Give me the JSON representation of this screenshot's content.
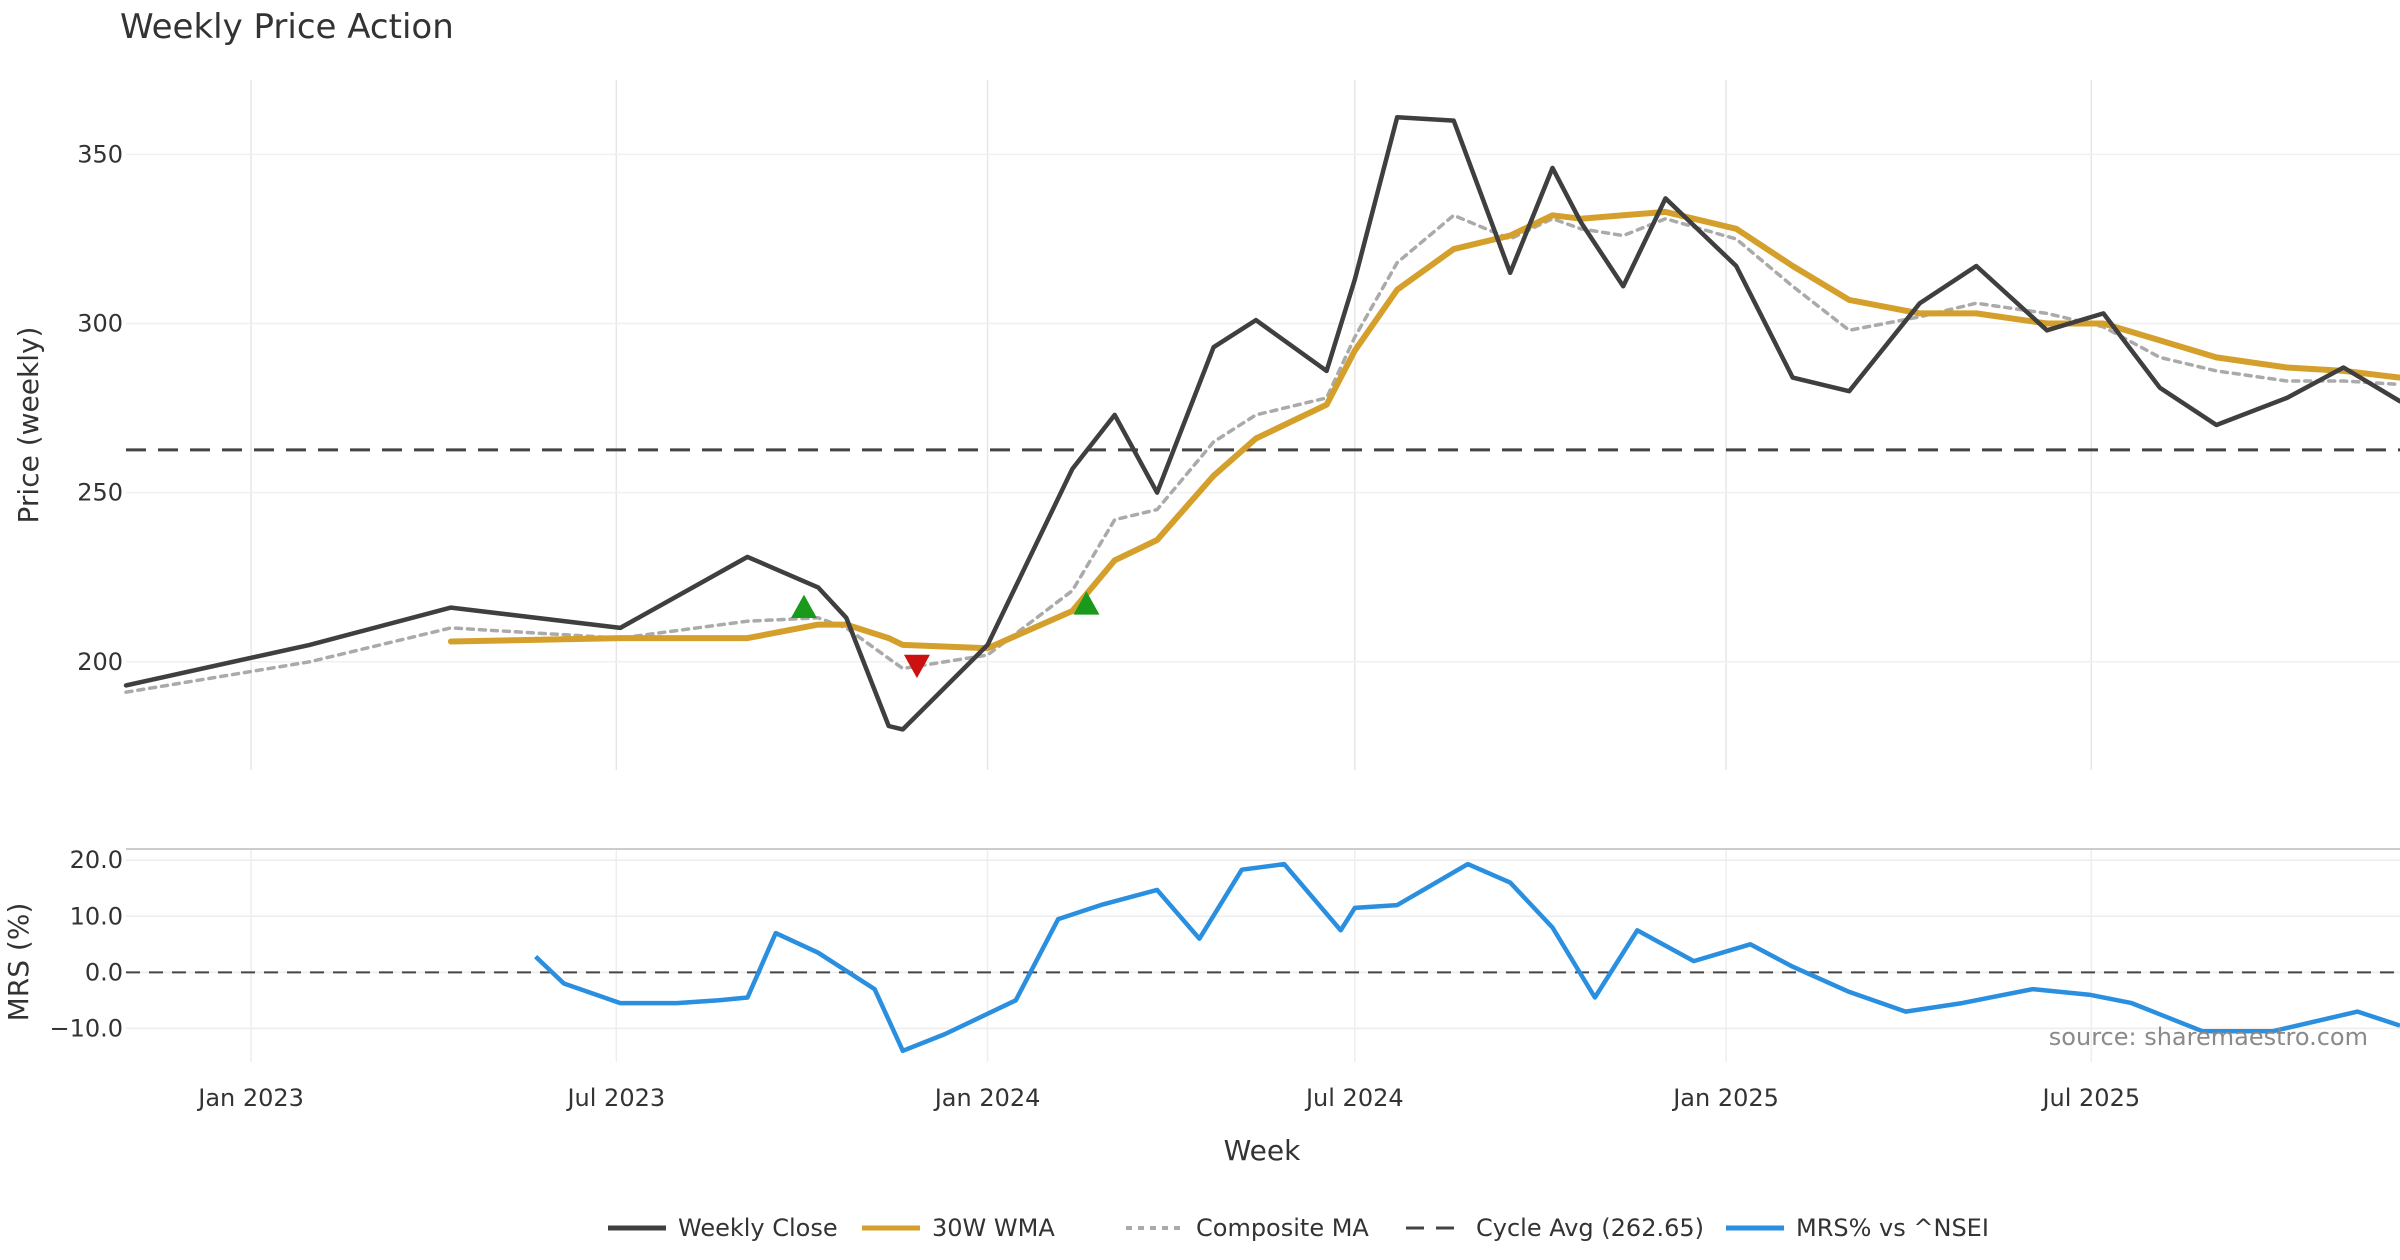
{
  "chart_data": [
    {
      "type": "line",
      "title": "Weekly Price Action",
      "xlabel": "",
      "ylabel": "Price (weekly)",
      "ylim": [
        168,
        372
      ],
      "xlim": [
        "2022-10-31",
        "2025-12-01"
      ],
      "grid": true,
      "x_tick_labels": [
        "Jan 2023",
        "Jul 2023",
        "Jan 2024",
        "Jul 2024",
        "Jan 2025",
        "Jul 2025"
      ],
      "x_ticks": [
        "2023-01-01",
        "2023-07-01",
        "2024-01-01",
        "2024-07-01",
        "2025-01-01",
        "2025-07-01"
      ],
      "y_ticks": [
        200,
        250,
        300,
        350
      ],
      "x": [
        "2022-10-31",
        "2023-01-30",
        "2023-04-10",
        "2023-07-03",
        "2023-09-04",
        "2023-10-09",
        "2023-10-23",
        "2023-11-13",
        "2023-11-20",
        "2024-01-01",
        "2024-02-12",
        "2024-03-04",
        "2024-03-25",
        "2024-04-22",
        "2024-05-13",
        "2024-06-17",
        "2024-07-01",
        "2024-07-22",
        "2024-08-19",
        "2024-09-16",
        "2024-10-07",
        "2024-10-21",
        "2024-11-11",
        "2024-12-02",
        "2025-01-06",
        "2025-02-03",
        "2025-03-03",
        "2025-04-07",
        "2025-05-05",
        "2025-06-09",
        "2025-07-07",
        "2025-08-04",
        "2025-09-01",
        "2025-10-06",
        "2025-11-03",
        "2025-12-01"
      ],
      "series": [
        {
          "name": "Weekly Close",
          "color": "#3f3f3f",
          "values": [
            193,
            205,
            216,
            210,
            231,
            222,
            213,
            181,
            180,
            205,
            257,
            273,
            250,
            293,
            301,
            286,
            313,
            361,
            360,
            315,
            346,
            330,
            311,
            337,
            317,
            284,
            280,
            306,
            317,
            298,
            303,
            281,
            270,
            278,
            287,
            277
          ]
        },
        {
          "name": "30W WMA",
          "color": "#d4a02b",
          "values": [
            null,
            null,
            206,
            207,
            207,
            211,
            211,
            207,
            205,
            204,
            215,
            230,
            236,
            255,
            266,
            276,
            292,
            310,
            322,
            326,
            332,
            331,
            332,
            333,
            328,
            317,
            307,
            303,
            303,
            300,
            300,
            295,
            290,
            287,
            286,
            284
          ]
        },
        {
          "name": "Composite MA",
          "color": "#aaaaaa",
          "values": [
            191,
            200,
            210,
            207,
            212,
            213,
            210,
            201,
            198,
            202,
            221,
            242,
            245,
            265,
            273,
            278,
            296,
            318,
            332,
            325,
            331,
            328,
            326,
            331,
            325,
            311,
            298,
            302,
            306,
            303,
            299,
            290,
            286,
            283,
            283,
            282
          ]
        }
      ],
      "reference_lines": [
        {
          "name": "Cycle Avg (262.65)",
          "value": 262.65,
          "style": "dashed",
          "color": "#444444"
        }
      ],
      "markers": [
        {
          "type": "buy",
          "shape": "triangle-up",
          "color": "#1a9a1a",
          "x": "2023-10-02",
          "y": 216
        },
        {
          "type": "sell",
          "shape": "triangle-down",
          "color": "#cc1111",
          "x": "2023-11-27",
          "y": 199
        },
        {
          "type": "buy",
          "shape": "triangle-up",
          "color": "#1a9a1a",
          "x": "2024-02-19",
          "y": 217
        }
      ]
    },
    {
      "type": "line",
      "title": "",
      "xlabel": "Week",
      "ylabel": "MRS (%)",
      "ylim": [
        -16,
        22
      ],
      "y_ticks": [
        20,
        10,
        0,
        -10
      ],
      "y_tick_labels": [
        "20.0",
        "10.0",
        "0.0",
        "−10.0"
      ],
      "grid": true,
      "x": [
        "2023-05-22",
        "2023-06-05",
        "2023-07-03",
        "2023-07-31",
        "2023-08-21",
        "2023-09-04",
        "2023-09-18",
        "2023-10-09",
        "2023-11-06",
        "2023-11-20",
        "2023-12-11",
        "2024-01-15",
        "2024-02-05",
        "2024-02-26",
        "2024-03-25",
        "2024-04-15",
        "2024-05-06",
        "2024-05-27",
        "2024-06-24",
        "2024-07-01",
        "2024-07-22",
        "2024-08-26",
        "2024-09-16",
        "2024-10-07",
        "2024-10-28",
        "2024-11-18",
        "2024-12-16",
        "2025-01-13",
        "2025-02-03",
        "2025-03-03",
        "2025-03-31",
        "2025-04-28",
        "2025-06-02",
        "2025-06-30",
        "2025-07-21",
        "2025-08-25",
        "2025-09-29",
        "2025-11-10",
        "2025-12-01"
      ],
      "series": [
        {
          "name": "MRS% vs ^NSEI",
          "color": "#2b8fe0",
          "values": [
            2.8,
            -2,
            -5.5,
            -5.5,
            -5,
            -4.5,
            7,
            3.5,
            -3,
            -14,
            -11,
            -5,
            9.5,
            12,
            14.7,
            6,
            18.3,
            19.3,
            7.5,
            11.5,
            12,
            19.3,
            16,
            8,
            -4.5,
            7.5,
            2,
            5,
            1,
            -3.5,
            -7,
            -5.5,
            -3,
            -4,
            -5.5,
            -10.5,
            -10.5,
            -7,
            -9.5
          ]
        }
      ],
      "reference_lines": [
        {
          "value": 0,
          "style": "dashed",
          "color": "#444444"
        }
      ],
      "annotations": [
        "source: sharemaestro.com"
      ]
    }
  ],
  "legend": {
    "placement": "bottom-center",
    "items": [
      {
        "label": "Weekly Close",
        "style": "solid",
        "color": "#3f3f3f"
      },
      {
        "label": "30W WMA",
        "style": "solid",
        "color": "#d4a02b"
      },
      {
        "label": "Composite MA",
        "style": "dotted",
        "color": "#aaaaaa"
      },
      {
        "label": "Cycle Avg (262.65)",
        "style": "dashed",
        "color": "#444444"
      },
      {
        "label": "MRS% vs ^NSEI",
        "style": "solid",
        "color": "#2b8fe0"
      }
    ]
  }
}
